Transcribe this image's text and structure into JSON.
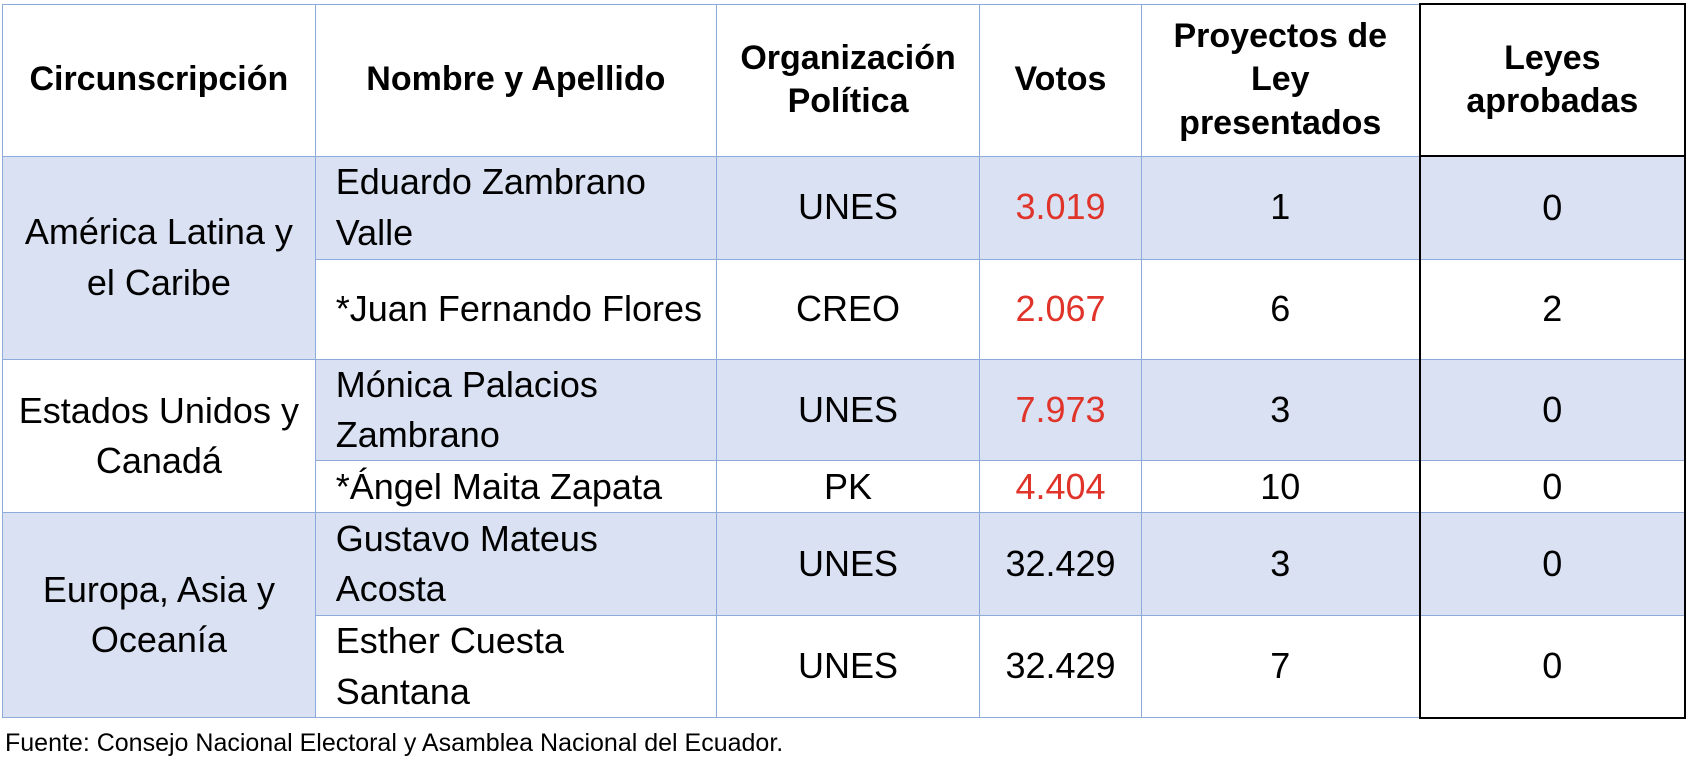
{
  "table": {
    "headers": [
      "Circunscripción",
      "Nombre y Apellido",
      "Organización Política",
      "Votos",
      "Proyectos de Ley presentados",
      "Leyes aprobadas"
    ],
    "regions": [
      "América Latina y el Caribe",
      "Estados Unidos y Canadá",
      "Europa, Asia y Oceanía"
    ],
    "rows": [
      {
        "name": "Eduardo Zambrano Valle",
        "org": "UNES",
        "votes": "3.019",
        "proyectos": "1",
        "leyes": "0"
      },
      {
        "name": "*Juan Fernando Flores",
        "org": "CREO",
        "votes": "2.067",
        "proyectos": "6",
        "leyes": "2"
      },
      {
        "name": "Mónica Palacios Zambrano",
        "org": "UNES",
        "votes": "7.973",
        "proyectos": "3",
        "leyes": "0"
      },
      {
        "name": "*Ángel Maita Zapata",
        "org": "PK",
        "votes": "4.404",
        "proyectos": "10",
        "leyes": "0"
      },
      {
        "name": "Gustavo Mateus Acosta",
        "org": "UNES",
        "votes": "32.429",
        "proyectos": "3",
        "leyes": "0"
      },
      {
        "name": "Esther Cuesta Santana",
        "org": "UNES",
        "votes": "32.429",
        "proyectos": "7",
        "leyes": "0"
      }
    ]
  },
  "source": "Fuente: Consejo Nacional Electoral y Asamblea Nacional del Ecuador.",
  "colors": {
    "header_bg": "#ffffff",
    "row_band": "#d9e1f2",
    "border": "#8eaadb",
    "highlight_votes": "#e0332a"
  }
}
